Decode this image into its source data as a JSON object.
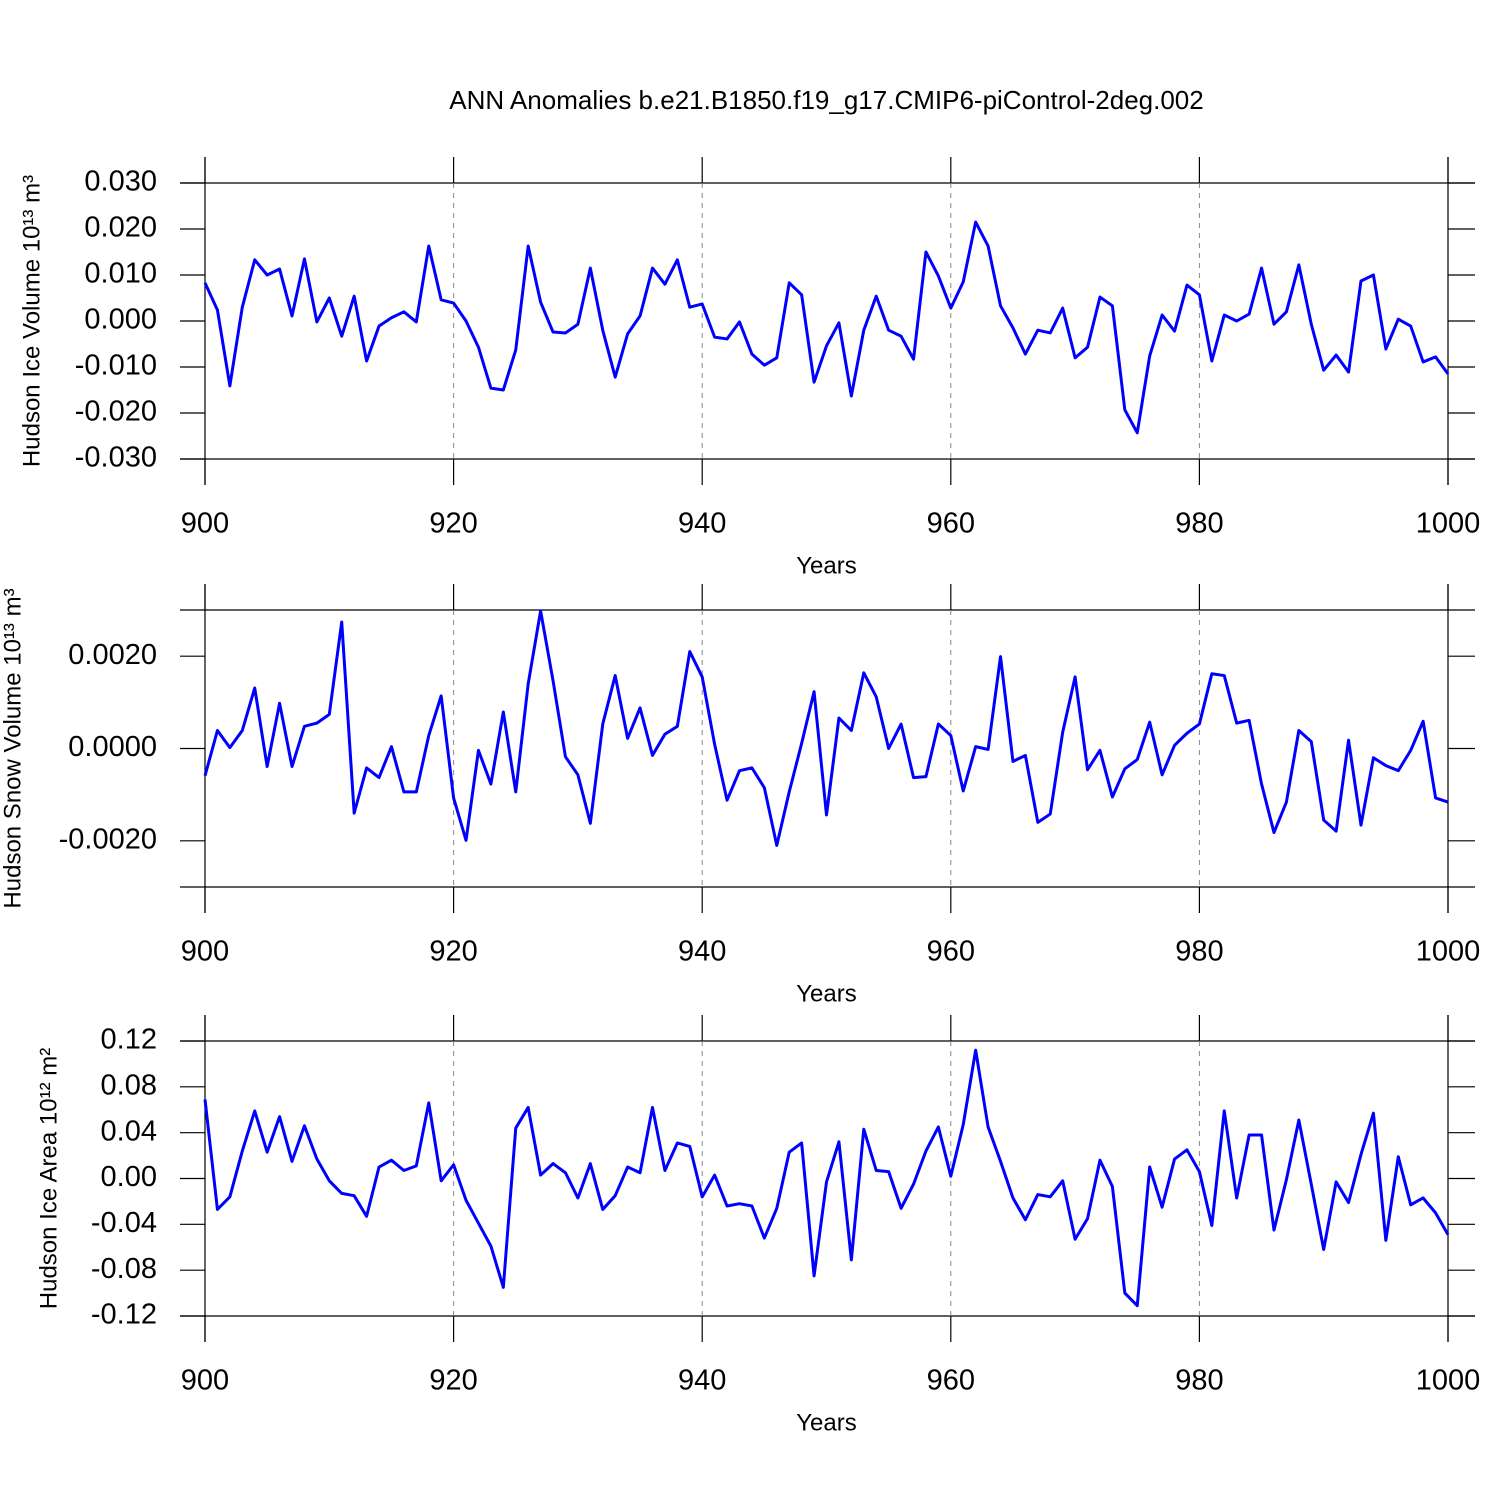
{
  "chart_data": [
    {
      "type": "line",
      "title": "ANN Anomalies b.e21.B1850.f19_g17.CMIP6-piControl-2deg.002",
      "xlabel": "Years",
      "ylabel": "Hudson Ice Volume 10¹³ m³",
      "x": [
        900,
        901,
        902,
        903,
        904,
        905,
        906,
        907,
        908,
        909,
        910,
        911,
        912,
        913,
        914,
        915,
        916,
        917,
        918,
        919,
        920,
        921,
        922,
        923,
        924,
        925,
        926,
        927,
        928,
        929,
        930,
        931,
        932,
        933,
        934,
        935,
        936,
        937,
        938,
        939,
        940,
        941,
        942,
        943,
        944,
        945,
        946,
        947,
        948,
        949,
        950,
        951,
        952,
        953,
        954,
        955,
        956,
        957,
        958,
        959,
        960,
        961,
        962,
        963,
        964,
        965,
        966,
        967,
        968,
        969,
        970,
        971,
        972,
        973,
        974,
        975,
        976,
        977,
        978,
        979,
        980,
        981,
        982,
        983,
        984,
        985,
        986,
        987,
        988,
        989,
        990,
        991,
        992,
        993,
        994,
        995,
        996,
        997,
        998,
        999,
        1000
      ],
      "series": [
        {
          "color": "#0000ff",
          "values": [
            0.0083,
            0.0024,
            -0.0141,
            0.003,
            0.0133,
            0.01,
            0.0113,
            0.0011,
            0.0135,
            -0.0002,
            0.005,
            -0.0033,
            0.0054,
            -0.0087,
            -0.0011,
            0.0007,
            0.002,
            -0.0002,
            0.0163,
            0.0046,
            0.0039,
            0.0,
            -0.0057,
            -0.0146,
            -0.015,
            -0.0063,
            0.0163,
            0.0041,
            -0.0024,
            -0.0026,
            -0.0007,
            0.0115,
            -0.002,
            -0.0122,
            -0.0028,
            0.0011,
            0.0115,
            0.008,
            0.0133,
            0.003,
            0.0037,
            -0.0035,
            -0.0039,
            -0.0002,
            -0.0072,
            -0.0096,
            -0.008,
            0.0083,
            0.0057,
            -0.0133,
            -0.0054,
            -0.0004,
            -0.0163,
            -0.002,
            0.0054,
            -0.002,
            -0.0033,
            -0.0083,
            0.015,
            0.0098,
            0.0028,
            0.0085,
            0.0215,
            0.0163,
            0.0033,
            -0.0015,
            -0.0072,
            -0.002,
            -0.0026,
            0.0028,
            -0.008,
            -0.0057,
            0.0052,
            0.0033,
            -0.0193,
            -0.0243,
            -0.0076,
            0.0013,
            -0.0022,
            0.0078,
            0.0057,
            -0.0087,
            0.0013,
            0.0,
            0.0015,
            0.0115,
            -0.0007,
            0.002,
            0.0122,
            -0.0007,
            -0.0107,
            -0.0074,
            -0.0111,
            0.0087,
            0.01,
            -0.0061,
            0.0004,
            -0.0011,
            -0.0089,
            -0.0078,
            -0.0115
          ]
        }
      ],
      "xlim": [
        900,
        1000
      ],
      "xticks": [
        900,
        920,
        940,
        960,
        980,
        1000
      ],
      "ylim": [
        -0.03,
        0.03
      ],
      "yticks": [
        {
          "value": -0.03,
          "label": "-0.030"
        },
        {
          "value": -0.02,
          "label": "-0.020"
        },
        {
          "value": -0.01,
          "label": "-0.010"
        },
        {
          "value": 0,
          "label": "0.000"
        },
        {
          "value": 0.01,
          "label": "0.010"
        },
        {
          "value": 0.02,
          "label": "0.020"
        },
        {
          "value": 0.03,
          "label": "0.030"
        }
      ],
      "grid": "x-dashed"
    },
    {
      "type": "line",
      "xlabel": "Years",
      "ylabel": "Hudson Snow Volume 10¹³ m³",
      "x": [
        900,
        901,
        902,
        903,
        904,
        905,
        906,
        907,
        908,
        909,
        910,
        911,
        912,
        913,
        914,
        915,
        916,
        917,
        918,
        919,
        920,
        921,
        922,
        923,
        924,
        925,
        926,
        927,
        928,
        929,
        930,
        931,
        932,
        933,
        934,
        935,
        936,
        937,
        938,
        939,
        940,
        941,
        942,
        943,
        944,
        945,
        946,
        947,
        948,
        949,
        950,
        951,
        952,
        953,
        954,
        955,
        956,
        957,
        958,
        959,
        960,
        961,
        962,
        963,
        964,
        965,
        966,
        967,
        968,
        969,
        970,
        971,
        972,
        973,
        974,
        975,
        976,
        977,
        978,
        979,
        980,
        981,
        982,
        983,
        984,
        985,
        986,
        987,
        988,
        989,
        990,
        991,
        992,
        993,
        994,
        995,
        996,
        997,
        998,
        999,
        1000
      ],
      "series": [
        {
          "color": "#0000ff",
          "values": [
            -0.00059,
            0.00039,
            2e-05,
            0.00039,
            0.00131,
            -0.00039,
            0.00098,
            -0.00039,
            0.00048,
            0.00055,
            0.00074,
            0.00274,
            -0.0014,
            -0.00042,
            -0.00063,
            4e-05,
            -0.00094,
            -0.00094,
            0.00028,
            0.00114,
            -0.00107,
            -0.00199,
            -4e-05,
            -0.00077,
            0.00079,
            -0.00094,
            0.0014,
            0.00298,
            0.00147,
            -0.00018,
            -0.00057,
            -0.00162,
            0.00053,
            0.00158,
            0.00022,
            0.00088,
            -0.00015,
            0.00031,
            0.00048,
            0.0021,
            0.00155,
            9e-05,
            -0.00112,
            -0.00048,
            -0.00042,
            -0.00085,
            -0.0021,
            -0.00094,
            0.00011,
            0.00123,
            -0.00144,
            0.00066,
            0.00039,
            0.00164,
            0.00112,
            0.0,
            0.00053,
            -0.00063,
            -0.00061,
            0.00053,
            0.00028,
            -0.00092,
            4e-05,
            -2e-05,
            0.00199,
            -0.00028,
            -0.00015,
            -0.0016,
            -0.00142,
            0.00035,
            0.00155,
            -0.00046,
            -4e-05,
            -0.00105,
            -0.00044,
            -0.00024,
            0.00057,
            -0.00057,
            7e-05,
            0.00033,
            0.00053,
            0.00162,
            0.00158,
            0.00055,
            0.00061,
            -0.00077,
            -0.00182,
            -0.00116,
            0.00039,
            0.00015,
            -0.00155,
            -0.00179,
            0.00018,
            -0.00166,
            -0.0002,
            -0.00037,
            -0.00048,
            -4e-05,
            0.00059,
            -0.00107,
            -0.00116
          ]
        }
      ],
      "xlim": [
        900,
        1000
      ],
      "xticks": [
        900,
        920,
        940,
        960,
        980,
        1000
      ],
      "ylim": [
        -0.003,
        0.003
      ],
      "yticks": [
        {
          "value": -0.002,
          "label": "-0.0020"
        },
        {
          "value": 0,
          "label": "0.0000"
        },
        {
          "value": 0.002,
          "label": "0.0020"
        }
      ],
      "grid": "x-dashed"
    },
    {
      "type": "line",
      "xlabel": "Years",
      "ylabel": "Hudson Ice Area 10¹² m²",
      "x": [
        900,
        901,
        902,
        903,
        904,
        905,
        906,
        907,
        908,
        909,
        910,
        911,
        912,
        913,
        914,
        915,
        916,
        917,
        918,
        919,
        920,
        921,
        922,
        923,
        924,
        925,
        926,
        927,
        928,
        929,
        930,
        931,
        932,
        933,
        934,
        935,
        936,
        937,
        938,
        939,
        940,
        941,
        942,
        943,
        944,
        945,
        946,
        947,
        948,
        949,
        950,
        951,
        952,
        953,
        954,
        955,
        956,
        957,
        958,
        959,
        960,
        961,
        962,
        963,
        964,
        965,
        966,
        967,
        968,
        969,
        970,
        971,
        972,
        973,
        974,
        975,
        976,
        977,
        978,
        979,
        980,
        981,
        982,
        983,
        984,
        985,
        986,
        987,
        988,
        989,
        990,
        991,
        992,
        993,
        994,
        995,
        996,
        997,
        998,
        999,
        1000
      ],
      "series": [
        {
          "color": "#0000ff",
          "values": [
            0.069,
            -0.027,
            -0.016,
            0.024,
            0.059,
            0.023,
            0.054,
            0.015,
            0.046,
            0.017,
            -0.002,
            -0.013,
            -0.015,
            -0.033,
            0.01,
            0.016,
            0.007,
            0.011,
            0.066,
            -0.002,
            0.012,
            -0.019,
            -0.039,
            -0.059,
            -0.095,
            0.044,
            0.062,
            0.003,
            0.013,
            0.005,
            -0.017,
            0.013,
            -0.027,
            -0.015,
            0.01,
            0.005,
            0.062,
            0.007,
            0.031,
            0.028,
            -0.016,
            0.003,
            -0.024,
            -0.022,
            -0.024,
            -0.052,
            -0.026,
            0.023,
            0.031,
            -0.085,
            -0.003,
            0.032,
            -0.071,
            0.043,
            0.007,
            0.006,
            -0.026,
            -0.005,
            0.024,
            0.045,
            0.002,
            0.047,
            0.112,
            0.045,
            0.015,
            -0.017,
            -0.036,
            -0.014,
            -0.016,
            -0.002,
            -0.053,
            -0.035,
            0.016,
            -0.007,
            -0.1,
            -0.111,
            0.01,
            -0.025,
            0.017,
            0.025,
            0.006,
            -0.041,
            0.059,
            -0.017,
            0.038,
            0.038,
            -0.045,
            -0.001,
            0.051,
            -0.005,
            -0.062,
            -0.003,
            -0.021,
            0.021,
            0.057,
            -0.054,
            0.019,
            -0.023,
            -0.017,
            -0.03,
            -0.049
          ]
        }
      ],
      "xlim": [
        900,
        1000
      ],
      "xticks": [
        900,
        920,
        940,
        960,
        980,
        1000
      ],
      "ylim": [
        -0.12,
        0.12
      ],
      "yticks": [
        -0.12,
        -0.08,
        -0.04,
        {
          "value": 0,
          "label": "0.00"
        },
        0.04,
        0.08,
        0.12
      ],
      "grid": "x-dashed"
    }
  ]
}
